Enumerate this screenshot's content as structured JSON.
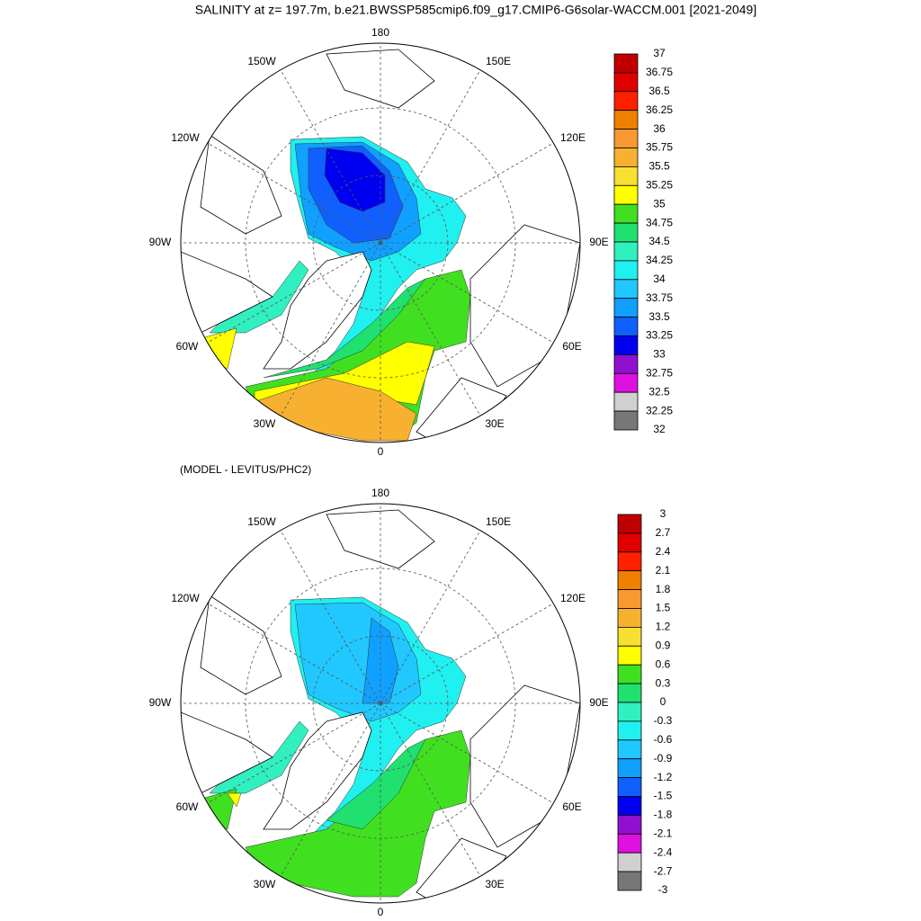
{
  "title": "SALINITY at z= 197.7m, b.e21.BWSSP585cmip6.f09_g17.CMIP6-G6solar-WACCM.001 [2021-2049]",
  "panels": [
    {
      "lon_labels": [
        "180",
        "150W",
        "150E",
        "120W",
        "120E",
        "90W",
        "90E",
        "60W",
        "60E",
        "30W",
        "30E",
        "0"
      ],
      "colorbar": {
        "labels": [
          "37",
          "36.75",
          "36.5",
          "36.25",
          "36",
          "35.75",
          "35.5",
          "35.25",
          "35",
          "34.75",
          "34.5",
          "34.25",
          "34",
          "33.75",
          "33.5",
          "33.25",
          "33",
          "32.75",
          "32.5",
          "32.25",
          "32"
        ],
        "colors": [
          "#c00000",
          "#e00000",
          "#ff2000",
          "#f08000",
          "#f89a30",
          "#f8b030",
          "#f8e030",
          "#ffff00",
          "#40e020",
          "#20e070",
          "#30f0c0",
          "#20f0f0",
          "#20c8ff",
          "#10a0ff",
          "#1060ff",
          "#0000f0",
          "#9010d0",
          "#e010e0",
          "#d0d0d0",
          "#777777"
        ]
      }
    },
    {
      "subtitle": "(MODEL - LEVITUS/PHC2)",
      "lon_labels": [
        "180",
        "150W",
        "150E",
        "120W",
        "120E",
        "90W",
        "90E",
        "60W",
        "60E",
        "30W",
        "30E",
        "0"
      ],
      "colorbar": {
        "labels": [
          "3",
          "2.7",
          "2.4",
          "2.1",
          "1.8",
          "1.5",
          "1.2",
          "0.9",
          "0.6",
          "0.3",
          "0",
          "-0.3",
          "-0.6",
          "-0.9",
          "-1.2",
          "-1.5",
          "-1.8",
          "-2.1",
          "-2.4",
          "-2.7",
          "-3"
        ],
        "colors": [
          "#c00000",
          "#e00000",
          "#ff2000",
          "#f08000",
          "#f89a30",
          "#f8b030",
          "#f8e030",
          "#ffff00",
          "#40e020",
          "#20e070",
          "#30f0c0",
          "#20f0f0",
          "#20c8ff",
          "#10a0ff",
          "#1060ff",
          "#0000f0",
          "#9010d0",
          "#e010e0",
          "#d0d0d0",
          "#777777"
        ]
      }
    }
  ]
}
